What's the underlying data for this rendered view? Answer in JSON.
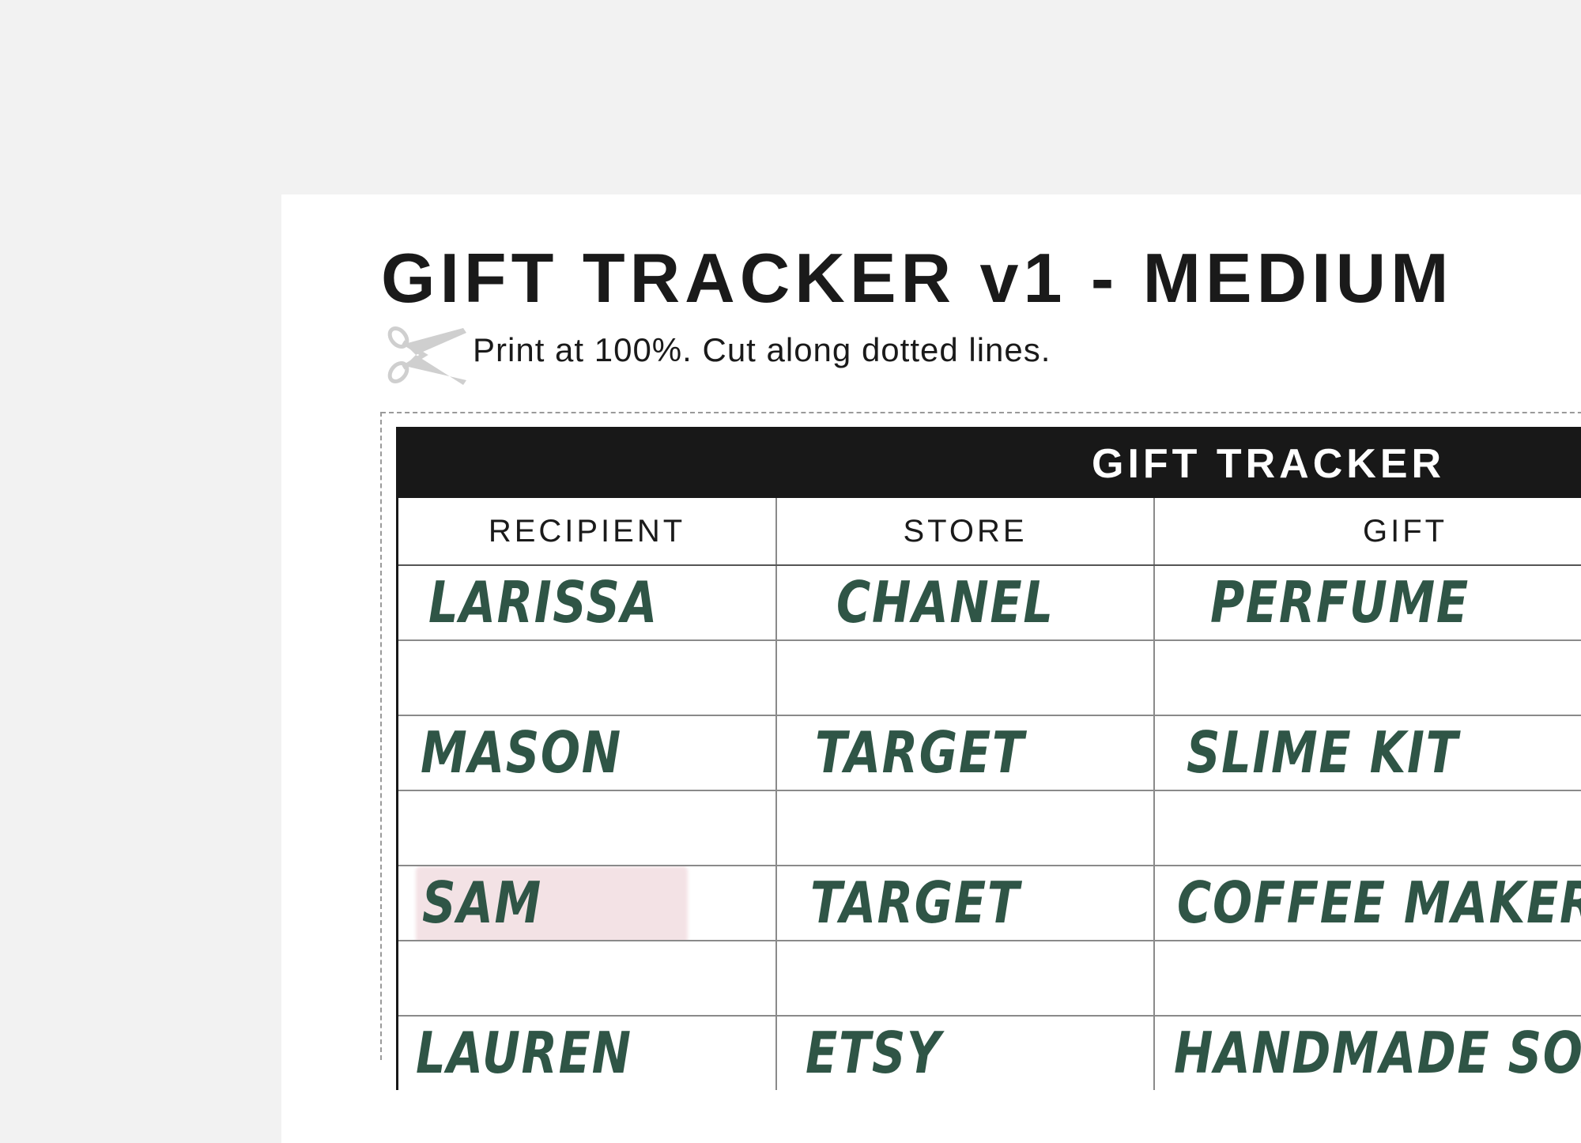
{
  "title": "GIFT TRACKER v1 - MEDIUM",
  "instruction": "Print at 100%. Cut along dotted lines.",
  "icons": {
    "scissors": "scissors-icon"
  },
  "colors": {
    "ink": "#2f5546",
    "header": "#181818",
    "highlight": "#f2dde1"
  },
  "table": {
    "header": "GIFT TRACKER",
    "columns": [
      "RECIPIENT",
      "STORE",
      "GIFT"
    ],
    "rows": [
      {
        "recipient": "LARISSA",
        "store": "CHANEL",
        "gift": "PERFUME"
      },
      {
        "recipient": "",
        "store": "",
        "gift": ""
      },
      {
        "recipient": "MASON",
        "store": "TARGET",
        "gift": "SLIME KIT"
      },
      {
        "recipient": "",
        "store": "",
        "gift": ""
      },
      {
        "recipient": "SAM",
        "store": "TARGET",
        "gift": "COFFEE MAKER",
        "highlighted": true
      },
      {
        "recipient": "",
        "store": "",
        "gift": ""
      },
      {
        "recipient": "LAUREN",
        "store": "ETSY",
        "gift": "HANDMADE SOAP"
      }
    ]
  }
}
